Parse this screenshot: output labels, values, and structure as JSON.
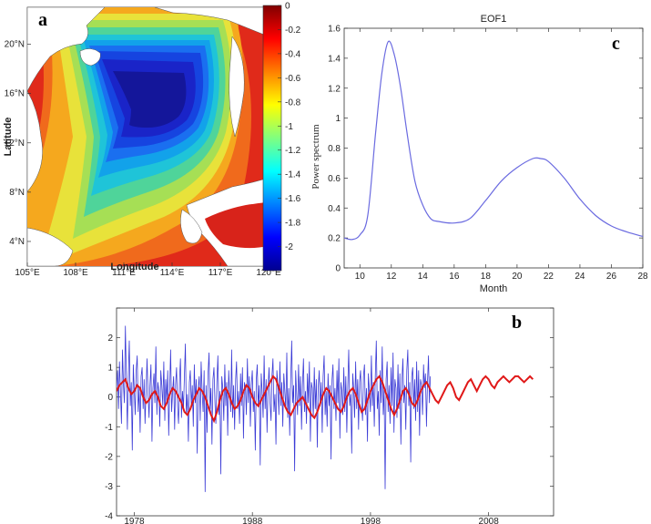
{
  "colors": {
    "line_blue": "#3b3bd6",
    "smooth_red": "#e01818",
    "eof_line": "#6a6ae0"
  },
  "chart_data": [
    {
      "panel": "a",
      "type": "heatmap",
      "title": "",
      "xlabel": "Longitude",
      "ylabel": "Latitude",
      "x_ticks": [
        "105°E",
        "108°E",
        "111°E",
        "114°E",
        "117°E",
        "120°E"
      ],
      "y_ticks": [
        "4°N",
        "8°N",
        "12°N",
        "16°N",
        "20°N"
      ],
      "xlim": [
        105,
        120
      ],
      "ylim": [
        2,
        23
      ],
      "colorbar": {
        "min": -2.2,
        "max": 0,
        "colormap": "jet",
        "ticks": [
          0,
          -0.2,
          -0.4,
          -0.6,
          -0.8,
          -1,
          -1.2,
          -1.4,
          -1.6,
          -1.8,
          -2
        ],
        "tick_labels": [
          "0",
          "-0.2",
          "-0.4",
          "-0.6",
          "-0.8",
          "-1",
          "-1.2",
          "-1.4",
          "-1.6",
          "-1.8",
          "-2"
        ]
      },
      "field_center": {
        "lon": 114.0,
        "lat": 16.5,
        "min_value": -2.2
      },
      "land_value_note": ""
    },
    {
      "panel": "c",
      "type": "line",
      "title": "EOF1",
      "xlabel": "Month",
      "ylabel": "Power spectrum",
      "xlim": [
        9,
        28
      ],
      "ylim": [
        0,
        1.6
      ],
      "x_ticks": [
        10,
        12,
        14,
        16,
        18,
        20,
        22,
        24,
        26,
        28
      ],
      "y_ticks": [
        0,
        0.2,
        0.4,
        0.6,
        0.8,
        1,
        1.2,
        1.4,
        1.6
      ],
      "y_tick_labels": [
        "0",
        "0.2",
        "0.4",
        "0.6",
        "0.8",
        "1",
        "1.2",
        "1.4",
        "1.6"
      ],
      "series": [
        {
          "x": [
            9,
            9.5,
            10,
            10.5,
            11,
            11.4,
            11.8,
            12.2,
            12.6,
            13,
            13.5,
            14,
            14.5,
            15,
            16,
            17,
            18,
            19,
            20,
            21,
            21.5,
            22,
            23,
            24,
            25,
            26,
            27,
            28
          ],
          "values": [
            0.2,
            0.19,
            0.22,
            0.35,
            0.9,
            1.3,
            1.51,
            1.42,
            1.2,
            0.9,
            0.58,
            0.42,
            0.33,
            0.31,
            0.3,
            0.33,
            0.45,
            0.58,
            0.67,
            0.73,
            0.73,
            0.71,
            0.6,
            0.46,
            0.35,
            0.28,
            0.24,
            0.21
          ]
        }
      ]
    },
    {
      "panel": "b",
      "type": "line",
      "title": "",
      "xlabel": "",
      "ylabel": "",
      "xlim": [
        1976.5,
        2013.5
      ],
      "ylim": [
        -4,
        3
      ],
      "x_ticks": [
        1978,
        1988,
        1998,
        2008
      ],
      "y_ticks": [
        -4,
        -3,
        -2,
        -1,
        0,
        1,
        2,
        3
      ],
      "series": [
        {
          "description_ref": "monthly",
          "x_start": 1976.5,
          "x_step": 0.0833,
          "values": [
            0.3,
            0.9,
            -0.4,
            1.2,
            0.2,
            -0.9,
            1.6,
            0.4,
            -0.2,
            2.4,
            0.6,
            -1.1,
            0.8,
            1.9,
            -0.3,
            0.5,
            -1.8,
            1.1,
            0.2,
            -0.6,
            0.9,
            1.4,
            -0.5,
            0.3,
            -1.2,
            0.7,
            1.0,
            -0.4,
            0.6,
            -0.9,
            0.2,
            1.3,
            0.1,
            -0.7,
            0.4,
            1.1,
            -1.5,
            0.3,
            0.8,
            -0.2,
            1.7,
            -0.6,
            0.5,
            0.2,
            -1.0,
            0.9,
            0.4,
            -0.3,
            1.2,
            -0.8,
            0.6,
            -0.2,
            0.9,
            -1.3,
            0.3,
            1.6,
            -0.5,
            0.2,
            0.7,
            -1.1,
            0.4,
            1.0,
            -0.3,
            -0.9,
            0.6,
            1.3,
            -0.7,
            0.2,
            -0.4,
            0.8,
            1.8,
            -0.6,
            0.1,
            -1.5,
            0.5,
            0.9,
            -0.3,
            0.4,
            -1.0,
            1.1,
            -0.2,
            0.6,
            -1.9,
            0.3,
            0.7,
            -0.8,
            1.2,
            0.2,
            -0.5,
            0.9,
            -3.2,
            0.4,
            -1.2,
            0.8,
            1.5,
            -0.4,
            0.3,
            -1.6,
            0.6,
            1.0,
            -0.2,
            -0.9,
            0.5,
            1.4,
            -0.6,
            0.2,
            -2.6,
            0.7,
            0.3,
            -0.8,
            1.1,
            -0.3,
            0.5,
            -1.3,
            0.9,
            0.1,
            -0.5,
            1.6,
            -0.7,
            0.4,
            -1.1,
            0.6,
            1.2,
            -0.4,
            0.2,
            -0.9,
            0.8,
            -0.3,
            1.0,
            -1.4,
            0.5,
            0.3,
            -0.6,
            1.3,
            -0.2,
            0.7,
            -1.0,
            0.4,
            0.9,
            -0.5,
            0.2,
            -1.8,
            0.6,
            1.1,
            -0.3,
            0.4,
            -2.3,
            0.8,
            0.2,
            -0.7,
            1.4,
            -0.4,
            0.6,
            -1.2,
            0.3,
            1.0,
            -0.2,
            -0.8,
            0.7,
            1.3,
            -0.5,
            0.1,
            -1.6,
            0.9,
            0.4,
            -0.6,
            1.2,
            -0.3,
            0.5,
            -1.0,
            0.8,
            0.2,
            -0.4,
            1.5,
            -0.7,
            0.3,
            -1.3,
            0.6,
            1.9,
            -0.2,
            0.4,
            -2.5,
            0.9,
            0.1,
            -0.6,
            1.1,
            -0.3,
            0.7,
            -1.1,
            0.4,
            1.3,
            -0.5,
            0.2,
            -0.9,
            0.8,
            -0.2,
            1.2,
            -1.5,
            0.5,
            0.3,
            -0.7,
            1.0,
            -0.4,
            0.6,
            -1.7,
            0.3,
            0.9,
            -0.3,
            0.5,
            -1.2,
            0.7,
            1.4,
            -0.6,
            0.2,
            -1.0,
            0.8,
            -0.3,
            0.4,
            -2.1,
            0.6,
            1.1,
            -0.4,
            0.3,
            -0.8,
            0.9,
            -0.2,
            1.3,
            -1.4,
            0.5,
            0.2,
            -0.6,
            1.0,
            -0.5,
            0.7,
            -1.2,
            0.4,
            1.6,
            -0.3,
            0.1,
            -1.9,
            0.8,
            0.3,
            -0.7,
            1.2,
            -0.4,
            0.6,
            -1.1,
            0.5,
            0.9,
            -0.2,
            -0.8,
            0.7,
            1.1,
            -0.6,
            0.3,
            -1.5,
            0.8,
            0.2,
            -0.5,
            1.4,
            -0.3,
            0.5,
            -1.0,
            0.7,
            1.9,
            -0.4,
            0.2,
            -1.3,
            0.9,
            -0.2,
            1.7,
            -0.6,
            0.3,
            -3.1,
            0.6,
            1.2,
            -0.5,
            0.4,
            -0.9,
            1.0,
            -0.3,
            1.5,
            -1.2,
            0.6,
            0.3,
            -0.7,
            1.1,
            -0.4,
            0.8,
            -1.6,
            0.5,
            1.3,
            -0.2,
            0.4,
            -1.1,
            0.9,
            1.6,
            -0.3,
            0.5,
            -2.2,
            0.7,
            1.0,
            -0.4,
            0.6,
            -0.8,
            1.2,
            -0.5,
            0.9,
            -1.3,
            0.6,
            0.4,
            -0.6,
            1.1,
            0.3,
            0.8,
            -1.0,
            0.5,
            1.4,
            -0.2,
            0.7
          ]
        },
        {
          "description_ref": "smoothed",
          "x_start": 1976.5,
          "x_step": 0.25,
          "values": [
            0.2,
            0.4,
            0.5,
            0.6,
            0.3,
            0.1,
            0.2,
            0.4,
            0.3,
            0.0,
            -0.2,
            -0.1,
            0.1,
            0.2,
            0.0,
            -0.3,
            -0.4,
            -0.2,
            0.1,
            0.3,
            0.2,
            0.0,
            -0.2,
            -0.5,
            -0.6,
            -0.4,
            -0.1,
            0.1,
            0.3,
            0.2,
            0.0,
            -0.3,
            -0.6,
            -0.8,
            -0.5,
            -0.1,
            0.2,
            0.3,
            0.1,
            -0.2,
            -0.4,
            -0.3,
            -0.1,
            0.2,
            0.4,
            0.3,
            0.0,
            -0.2,
            -0.3,
            -0.1,
            0.1,
            0.3,
            0.5,
            0.7,
            0.6,
            0.3,
            0.0,
            -0.3,
            -0.5,
            -0.6,
            -0.4,
            -0.2,
            -0.1,
            0.0,
            -0.2,
            -0.4,
            -0.6,
            -0.7,
            -0.5,
            -0.2,
            0.1,
            0.3,
            0.2,
            0.0,
            -0.2,
            -0.4,
            -0.5,
            -0.3,
            0.0,
            0.2,
            0.3,
            0.1,
            -0.2,
            -0.5,
            -0.4,
            -0.1,
            0.2,
            0.4,
            0.6,
            0.7,
            0.5,
            0.2,
            -0.1,
            -0.4,
            -0.6,
            -0.4,
            -0.1,
            0.2,
            0.3,
            0.1,
            -0.2,
            -0.3,
            -0.1,
            0.2,
            0.4,
            0.5,
            0.3,
            0.1,
            -0.1,
            -0.2,
            0.0,
            0.2,
            0.4,
            0.5,
            0.3,
            0.0,
            -0.1,
            0.1,
            0.3,
            0.5,
            0.6,
            0.4,
            0.2,
            0.4,
            0.6,
            0.7,
            0.6,
            0.4,
            0.3,
            0.5,
            0.6,
            0.7,
            0.6,
            0.5,
            0.6,
            0.7,
            0.7,
            0.6,
            0.5,
            0.6,
            0.7,
            0.6
          ]
        }
      ]
    }
  ],
  "panel_labels": {
    "a": "a",
    "b": "b",
    "c": "c"
  }
}
